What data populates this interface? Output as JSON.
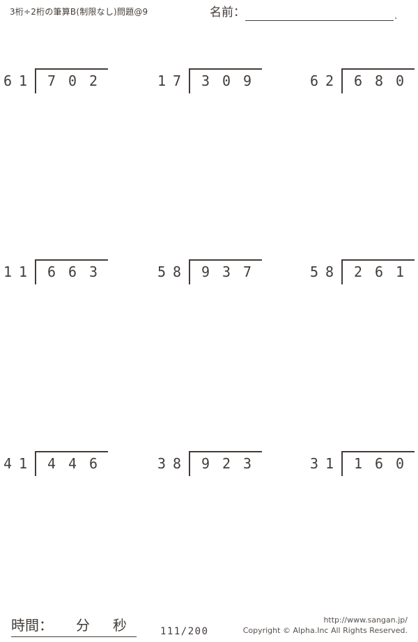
{
  "colors": {
    "ink": "#423c39"
  },
  "header": {
    "title": "3桁÷2桁の筆算B(制限なし)問題@9",
    "name_label": "名前：",
    "name_line_end": "."
  },
  "problems": [
    {
      "divisor": "61",
      "dividend": "702"
    },
    {
      "divisor": "17",
      "dividend": "309"
    },
    {
      "divisor": "62",
      "dividend": "680"
    },
    {
      "divisor": "11",
      "dividend": "663"
    },
    {
      "divisor": "58",
      "dividend": "937"
    },
    {
      "divisor": "58",
      "dividend": "261"
    },
    {
      "divisor": "41",
      "dividend": "446"
    },
    {
      "divisor": "38",
      "dividend": "923"
    },
    {
      "divisor": "31",
      "dividend": "160"
    }
  ],
  "footer": {
    "time_label": "時間：",
    "minutes_label": "分",
    "seconds_label": "秒",
    "page_number": "111/200",
    "site_url": "http://www.sangan.jp/",
    "copyright": "Copyright © Alpha.Inc All Rights Reserved."
  }
}
